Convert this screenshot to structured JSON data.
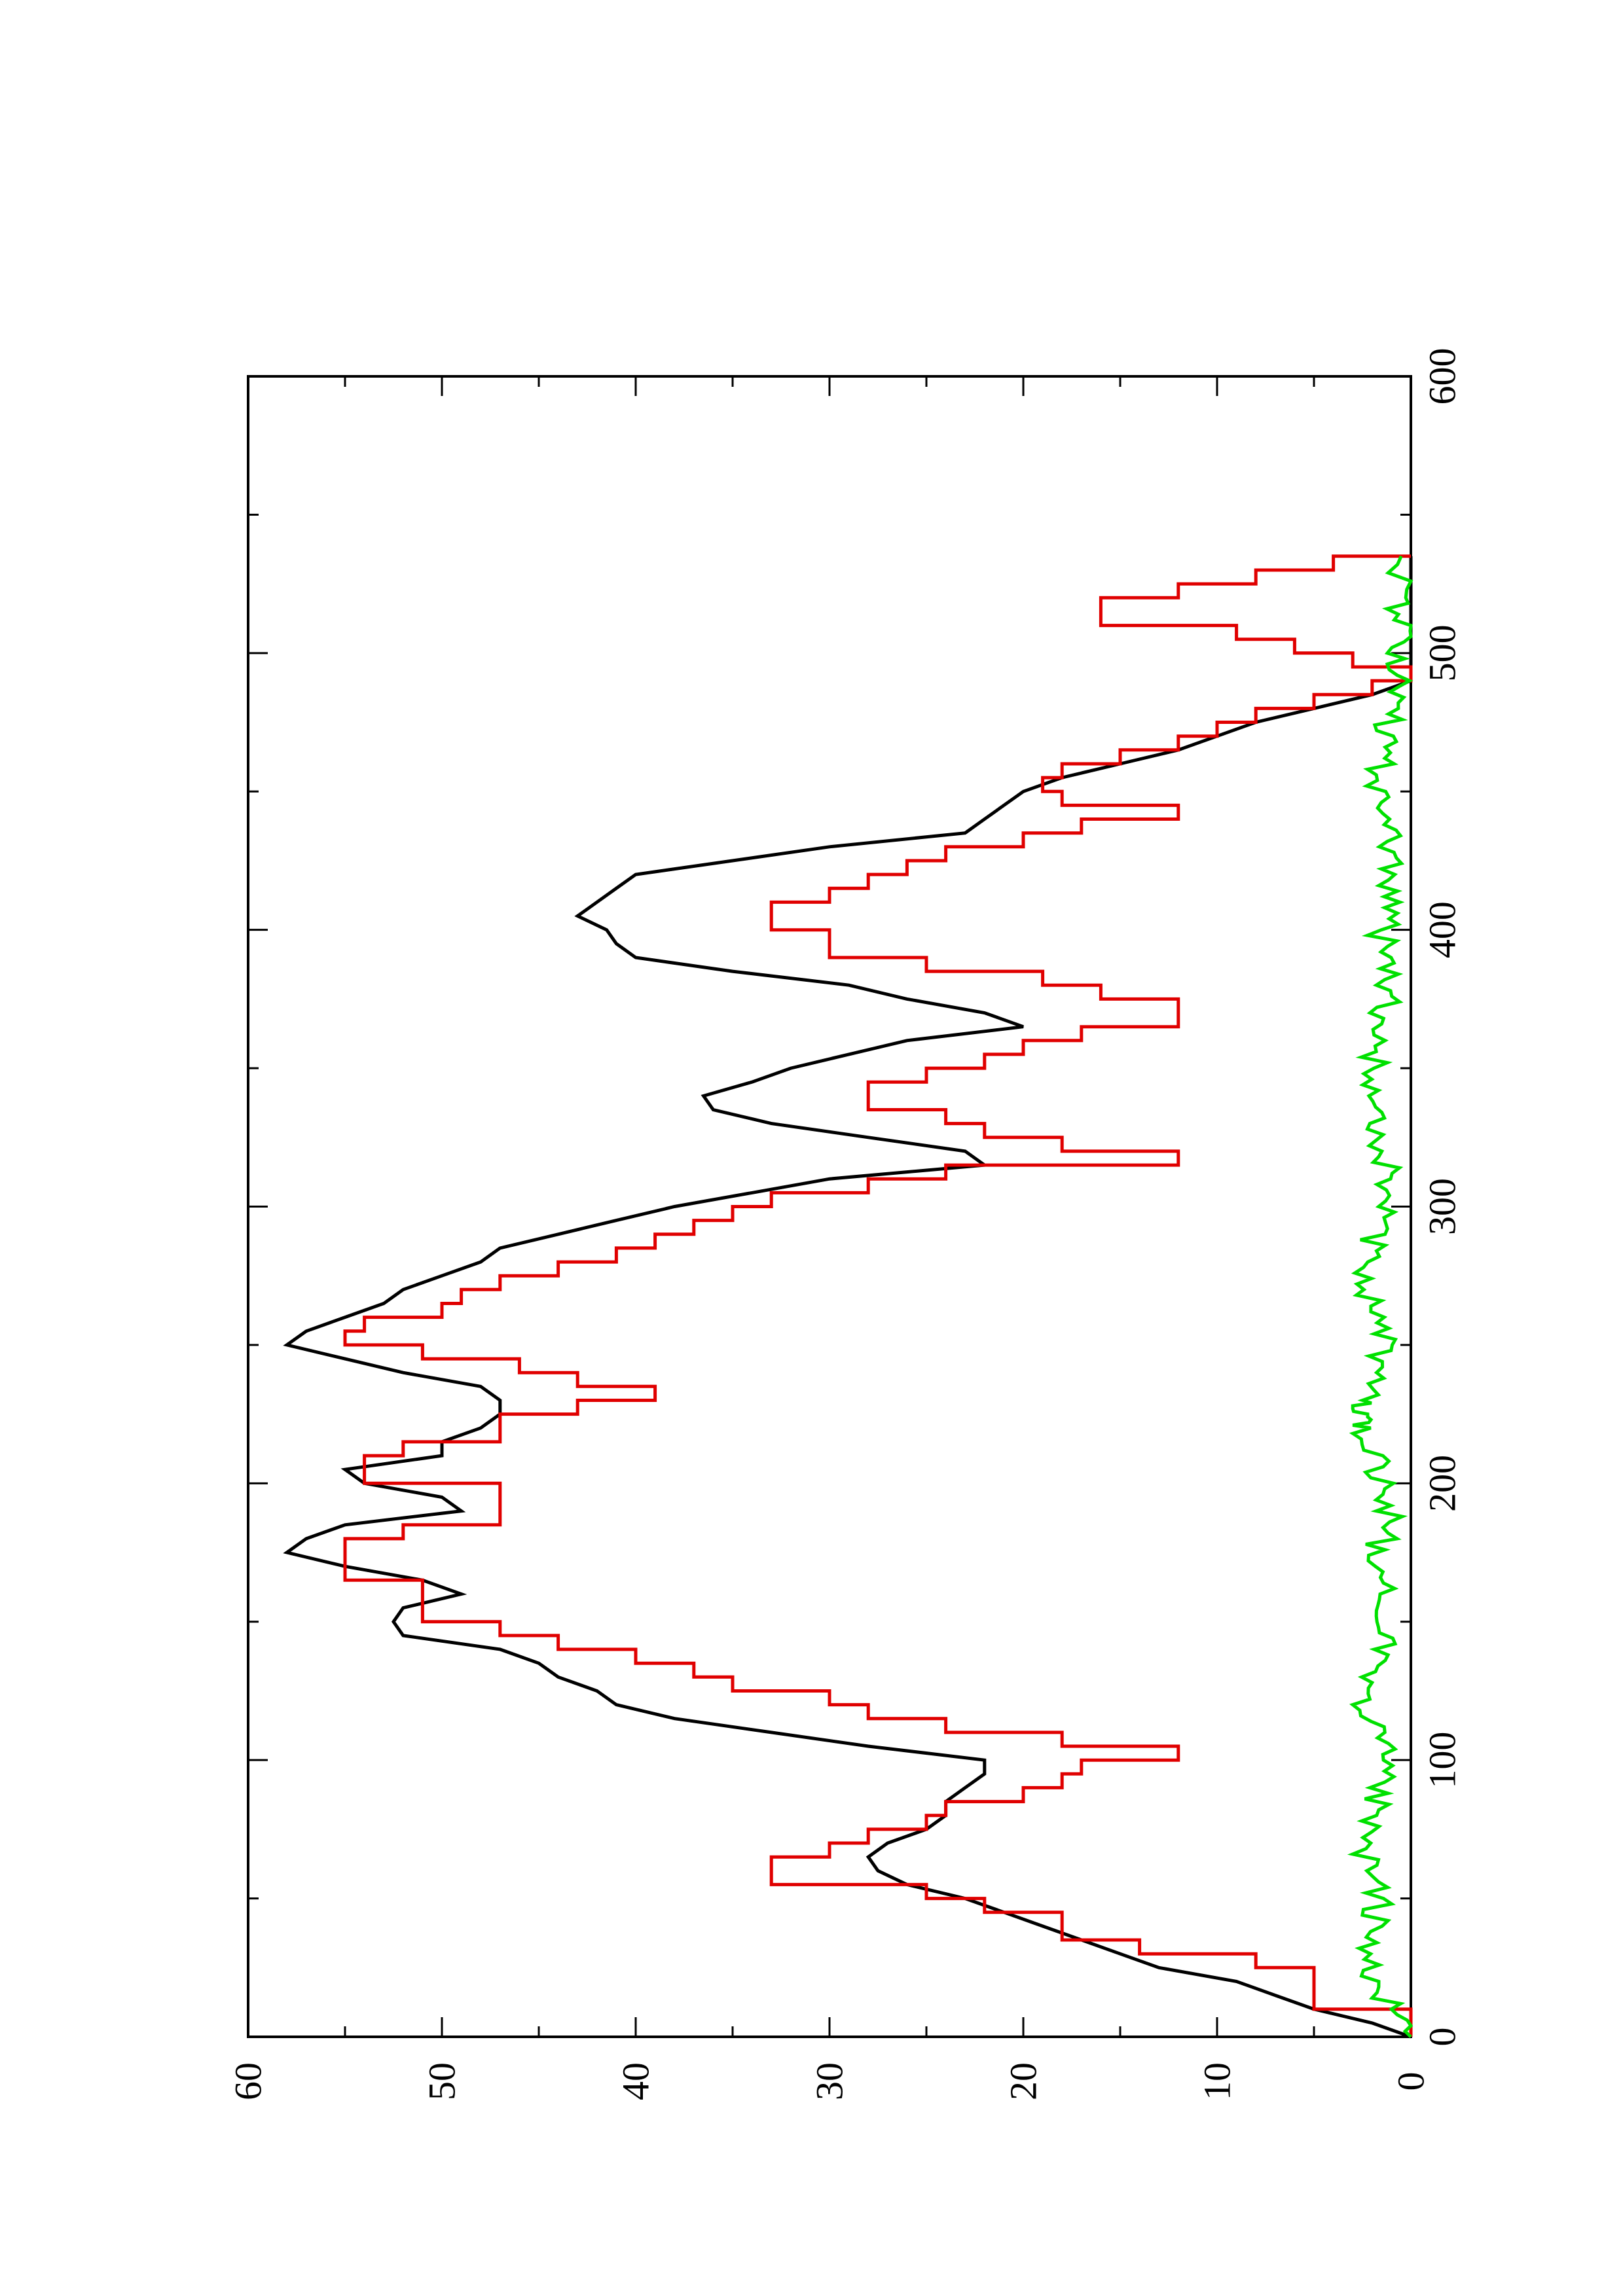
{
  "chart_data": {
    "type": "line",
    "orientation": "rotated-90-counterclockwise",
    "title": "",
    "xlabel": "",
    "ylabel": "",
    "xlim": [
      0,
      600
    ],
    "ylim": [
      0,
      60
    ],
    "x_ticks": [
      0,
      100,
      200,
      300,
      400,
      500,
      600
    ],
    "x_tick_labels": [
      "0",
      "100",
      "200",
      "300",
      "400",
      "500",
      "600"
    ],
    "x_minor_ticks": [
      50,
      150,
      250,
      350,
      450,
      550
    ],
    "y_ticks": [
      0,
      10,
      20,
      30,
      40,
      50,
      60
    ],
    "y_tick_labels": [
      "0",
      "10",
      "20",
      "30",
      "40",
      "50",
      "60"
    ],
    "y_minor_ticks": [
      5,
      15,
      25,
      35,
      45,
      55
    ],
    "grid": false,
    "legend": "none",
    "series": [
      {
        "color": "#000000",
        "step": false,
        "points": [
          [
            0,
            0
          ],
          [
            5,
            2
          ],
          [
            10,
            5
          ],
          [
            15,
            7
          ],
          [
            20,
            9
          ],
          [
            25,
            13
          ],
          [
            30,
            15
          ],
          [
            35,
            17
          ],
          [
            40,
            19
          ],
          [
            45,
            21
          ],
          [
            50,
            23
          ],
          [
            55,
            26
          ],
          [
            60,
            27.5
          ],
          [
            65,
            28
          ],
          [
            70,
            27
          ],
          [
            75,
            25
          ],
          [
            80,
            24
          ],
          [
            85,
            24
          ],
          [
            90,
            23
          ],
          [
            95,
            22
          ],
          [
            100,
            22
          ],
          [
            105,
            28
          ],
          [
            110,
            33
          ],
          [
            115,
            38
          ],
          [
            120,
            41
          ],
          [
            125,
            42
          ],
          [
            130,
            44
          ],
          [
            135,
            45
          ],
          [
            140,
            47
          ],
          [
            145,
            52
          ],
          [
            150,
            52.5
          ],
          [
            155,
            52
          ],
          [
            160,
            49
          ],
          [
            165,
            51
          ],
          [
            170,
            55
          ],
          [
            175,
            58
          ],
          [
            180,
            57
          ],
          [
            185,
            55
          ],
          [
            190,
            49
          ],
          [
            195,
            50
          ],
          [
            200,
            54
          ],
          [
            205,
            55
          ],
          [
            210,
            50
          ],
          [
            215,
            50
          ],
          [
            220,
            48
          ],
          [
            225,
            47
          ],
          [
            230,
            47
          ],
          [
            235,
            48
          ],
          [
            240,
            52
          ],
          [
            245,
            55
          ],
          [
            250,
            58
          ],
          [
            255,
            57
          ],
          [
            260,
            55
          ],
          [
            265,
            53
          ],
          [
            270,
            52
          ],
          [
            275,
            50
          ],
          [
            280,
            48
          ],
          [
            285,
            47
          ],
          [
            290,
            44
          ],
          [
            295,
            41
          ],
          [
            300,
            38
          ],
          [
            305,
            34
          ],
          [
            310,
            30
          ],
          [
            315,
            22
          ],
          [
            320,
            23
          ],
          [
            325,
            28
          ],
          [
            330,
            33
          ],
          [
            335,
            36
          ],
          [
            340,
            36.5
          ],
          [
            345,
            34
          ],
          [
            350,
            32
          ],
          [
            355,
            29
          ],
          [
            360,
            26
          ],
          [
            365,
            20
          ],
          [
            370,
            22
          ],
          [
            375,
            26
          ],
          [
            380,
            29
          ],
          [
            385,
            35
          ],
          [
            390,
            40
          ],
          [
            395,
            41
          ],
          [
            400,
            41.5
          ],
          [
            405,
            43
          ],
          [
            410,
            42
          ],
          [
            415,
            41
          ],
          [
            420,
            40
          ],
          [
            425,
            35
          ],
          [
            430,
            30
          ],
          [
            435,
            23
          ],
          [
            440,
            22
          ],
          [
            445,
            21
          ],
          [
            450,
            20
          ],
          [
            455,
            18
          ],
          [
            460,
            15
          ],
          [
            465,
            12
          ],
          [
            470,
            10
          ],
          [
            475,
            8
          ],
          [
            480,
            5
          ],
          [
            485,
            2
          ],
          [
            490,
            0
          ],
          [
            535,
            0
          ]
        ]
      },
      {
        "color": "#e00000",
        "step": true,
        "points": [
          [
            0,
            0
          ],
          [
            5,
            0
          ],
          [
            10,
            5
          ],
          [
            15,
            5
          ],
          [
            20,
            5
          ],
          [
            25,
            8
          ],
          [
            30,
            14
          ],
          [
            35,
            18
          ],
          [
            40,
            18
          ],
          [
            45,
            22
          ],
          [
            50,
            25
          ],
          [
            55,
            33
          ],
          [
            60,
            33
          ],
          [
            65,
            30
          ],
          [
            70,
            28
          ],
          [
            75,
            25
          ],
          [
            80,
            24
          ],
          [
            85,
            20
          ],
          [
            90,
            18
          ],
          [
            95,
            17
          ],
          [
            100,
            12
          ],
          [
            105,
            18
          ],
          [
            110,
            24
          ],
          [
            115,
            28
          ],
          [
            120,
            30
          ],
          [
            125,
            35
          ],
          [
            130,
            37
          ],
          [
            135,
            40
          ],
          [
            140,
            44
          ],
          [
            145,
            47
          ],
          [
            150,
            51
          ],
          [
            155,
            51
          ],
          [
            160,
            51
          ],
          [
            165,
            55
          ],
          [
            170,
            55
          ],
          [
            175,
            55
          ],
          [
            180,
            52
          ],
          [
            185,
            47
          ],
          [
            190,
            47
          ],
          [
            195,
            47
          ],
          [
            200,
            54
          ],
          [
            205,
            54
          ],
          [
            210,
            52
          ],
          [
            215,
            47
          ],
          [
            220,
            47
          ],
          [
            225,
            43
          ],
          [
            230,
            39
          ],
          [
            235,
            43
          ],
          [
            240,
            46
          ],
          [
            245,
            51
          ],
          [
            250,
            55
          ],
          [
            255,
            54
          ],
          [
            260,
            50
          ],
          [
            265,
            49
          ],
          [
            270,
            47
          ],
          [
            275,
            44
          ],
          [
            280,
            41
          ],
          [
            285,
            39
          ],
          [
            290,
            37
          ],
          [
            295,
            35
          ],
          [
            300,
            33
          ],
          [
            305,
            28
          ],
          [
            310,
            24
          ],
          [
            315,
            12
          ],
          [
            320,
            18
          ],
          [
            325,
            22
          ],
          [
            330,
            24
          ],
          [
            335,
            28
          ],
          [
            340,
            28
          ],
          [
            345,
            25
          ],
          [
            350,
            22
          ],
          [
            355,
            20
          ],
          [
            360,
            17
          ],
          [
            365,
            12
          ],
          [
            370,
            12
          ],
          [
            375,
            16
          ],
          [
            380,
            19
          ],
          [
            385,
            25
          ],
          [
            390,
            30
          ],
          [
            395,
            30
          ],
          [
            400,
            33
          ],
          [
            405,
            33
          ],
          [
            410,
            30
          ],
          [
            415,
            28
          ],
          [
            420,
            26
          ],
          [
            425,
            24
          ],
          [
            430,
            20
          ],
          [
            435,
            17
          ],
          [
            440,
            12
          ],
          [
            445,
            18
          ],
          [
            450,
            19
          ],
          [
            455,
            18
          ],
          [
            460,
            15
          ],
          [
            465,
            12
          ],
          [
            470,
            10
          ],
          [
            475,
            8
          ],
          [
            480,
            5
          ],
          [
            485,
            2
          ],
          [
            490,
            0
          ],
          [
            495,
            3
          ],
          [
            500,
            6
          ],
          [
            505,
            9
          ],
          [
            510,
            16
          ],
          [
            515,
            16
          ],
          [
            520,
            12
          ],
          [
            525,
            8
          ],
          [
            530,
            4
          ],
          [
            535,
            0
          ]
        ]
      },
      {
        "color": "#00e000",
        "step": false,
        "noise": true,
        "xlim": [
          0,
          535
        ],
        "range": [
          0,
          3
        ],
        "points": [
          [
            0,
            0
          ],
          [
            10,
            1
          ],
          [
            20,
            2
          ],
          [
            30,
            2.5
          ],
          [
            40,
            2
          ],
          [
            50,
            1.5
          ],
          [
            60,
            2
          ],
          [
            70,
            2.5
          ],
          [
            80,
            2
          ],
          [
            90,
            1.5
          ],
          [
            100,
            1
          ],
          [
            110,
            2
          ],
          [
            120,
            2.5
          ],
          [
            130,
            2
          ],
          [
            140,
            1.5
          ],
          [
            150,
            1
          ],
          [
            160,
            1.5
          ],
          [
            170,
            2
          ],
          [
            180,
            1.5
          ],
          [
            190,
            1
          ],
          [
            200,
            1.5
          ],
          [
            210,
            2
          ],
          [
            220,
            2.5
          ],
          [
            225,
            3
          ],
          [
            230,
            2.5
          ],
          [
            240,
            2
          ],
          [
            250,
            1.5
          ],
          [
            260,
            2
          ],
          [
            270,
            2.5
          ],
          [
            280,
            2
          ],
          [
            290,
            2
          ],
          [
            300,
            1.5
          ],
          [
            310,
            1
          ],
          [
            320,
            1.5
          ],
          [
            330,
            1.5
          ],
          [
            340,
            1.5
          ],
          [
            350,
            2
          ],
          [
            360,
            1.5
          ],
          [
            370,
            1.5
          ],
          [
            380,
            1
          ],
          [
            390,
            1.5
          ],
          [
            400,
            1.5
          ],
          [
            410,
            1
          ],
          [
            420,
            1
          ],
          [
            430,
            1
          ],
          [
            440,
            1.5
          ],
          [
            450,
            2
          ],
          [
            460,
            1.5
          ],
          [
            470,
            1.5
          ],
          [
            480,
            1
          ],
          [
            490,
            0.5
          ],
          [
            500,
            0.5
          ],
          [
            510,
            0.5
          ],
          [
            520,
            0.5
          ],
          [
            535,
            0.5
          ]
        ]
      }
    ]
  }
}
